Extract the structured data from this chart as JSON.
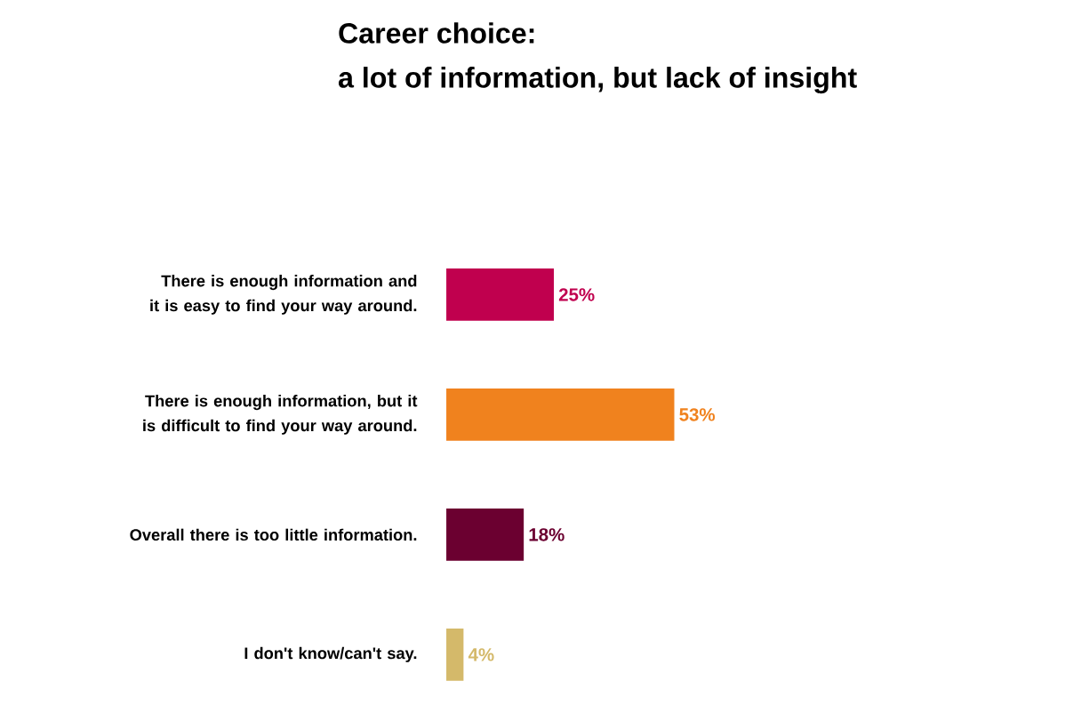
{
  "chart_data": {
    "type": "bar",
    "orientation": "horizontal",
    "title": "Career choice:",
    "subtitle": "a lot of information, but lack of insight",
    "categories": [
      "There is enough information and it is easy to find your way around.",
      "There is enough information, but it is difficult to find your way around.",
      "Overall there is too little information.",
      "I don't know/can't say."
    ],
    "values": [
      25,
      53,
      18,
      4
    ],
    "colors": [
      "#c0004e",
      "#f0821e",
      "#6b0030",
      "#d4b96a"
    ],
    "value_labels": [
      "25%",
      "53%",
      "18%",
      "4%"
    ]
  }
}
